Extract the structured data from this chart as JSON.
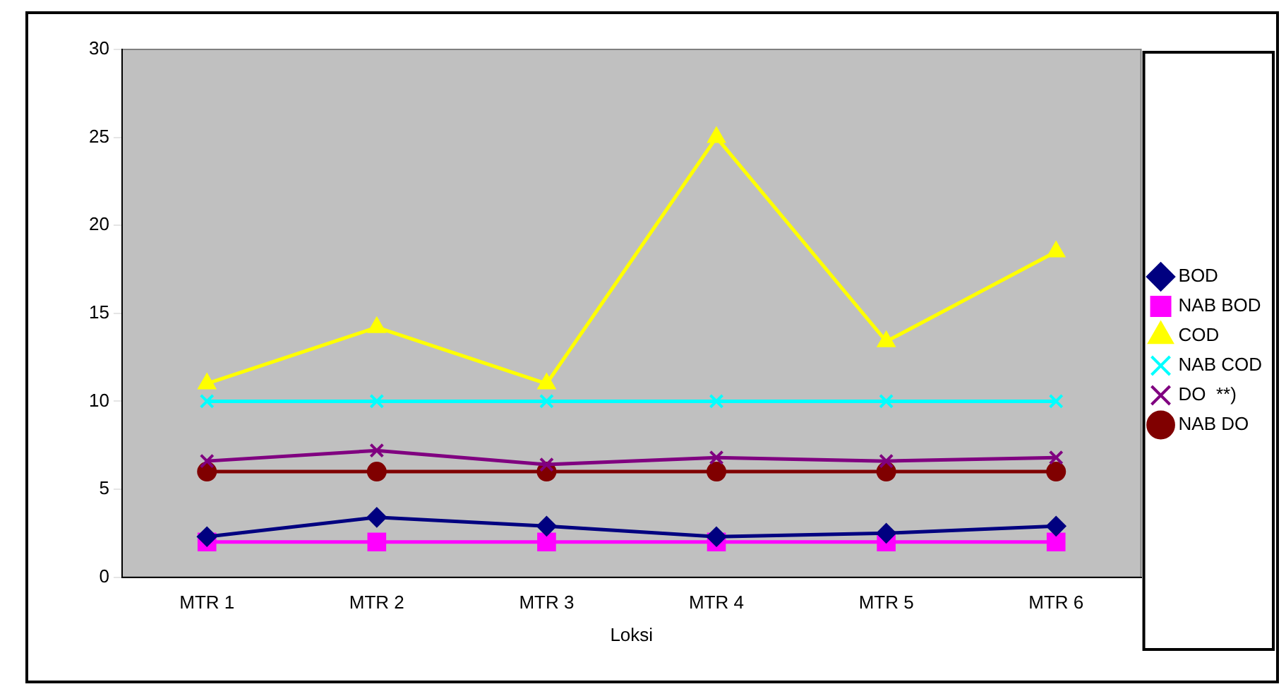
{
  "chart_data": {
    "type": "line",
    "xlabel": "Loksi",
    "categories": [
      "MTR 1",
      "MTR 2",
      "MTR 3",
      "MTR 4",
      "MTR 5",
      "MTR 6"
    ],
    "series": [
      {
        "name": "BOD",
        "color": "#000080",
        "marker": "diamond",
        "values": [
          2.3,
          3.4,
          2.9,
          2.3,
          2.5,
          2.9
        ]
      },
      {
        "name": "NAB BOD",
        "color": "#ff00ff",
        "marker": "square",
        "values": [
          2,
          2,
          2,
          2,
          2,
          2
        ]
      },
      {
        "name": "COD",
        "color": "#ffff00",
        "marker": "triangle",
        "values": [
          11,
          14.2,
          11,
          25,
          13.4,
          18.5
        ]
      },
      {
        "name": "NAB COD",
        "color": "#00ffff",
        "marker": "cross",
        "values": [
          10,
          10,
          10,
          10,
          10,
          10
        ]
      },
      {
        "name": "DO  **)",
        "color": "#800080",
        "marker": "cross",
        "values": [
          6.6,
          7.2,
          6.4,
          6.8,
          6.6,
          6.8
        ]
      },
      {
        "name": "NAB DO",
        "color": "#800000",
        "marker": "circle",
        "values": [
          6,
          6,
          6,
          6,
          6,
          6
        ]
      }
    ],
    "ylim": [
      0,
      30
    ],
    "yticks": [
      0,
      5,
      10,
      15,
      20,
      25,
      30
    ],
    "grid": false,
    "legend": "right"
  }
}
